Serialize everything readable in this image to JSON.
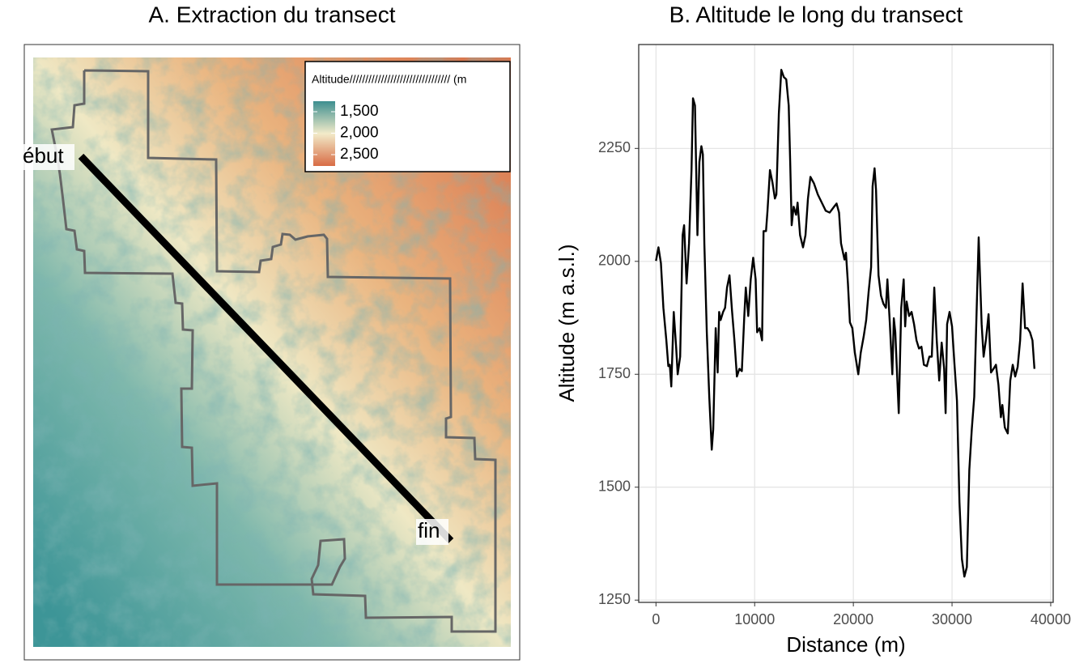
{
  "chart_data": [
    {
      "type": "map",
      "title": "A. Extraction du transect",
      "legend_title": "Altitude//////////////////////////////// (m",
      "legend_lim": [
        1255,
        2765
      ],
      "legend_ticks": [
        {
          "value": 1500,
          "label": "1,500"
        },
        {
          "value": 2000,
          "label": "2,000"
        },
        {
          "value": 2500,
          "label": "2,500"
        }
      ],
      "annotations": [
        "ébut",
        "fin"
      ]
    },
    {
      "type": "line",
      "title": "B. Altitude le long du transect",
      "x_label": "Distance (m)",
      "y_label": "Altitude (m a.s.l.)",
      "color": "#000000",
      "grid": true,
      "xlim": [
        -1750,
        40250
      ],
      "ylim": [
        1245,
        2480
      ],
      "xticks": [
        0,
        10000,
        20000,
        30000,
        40000
      ],
      "yticks": [
        1250,
        1500,
        1750,
        2000,
        2250
      ],
      "x": [
        0,
        250,
        500,
        750,
        1050,
        1250,
        1400,
        1550,
        1800,
        2050,
        2200,
        2450,
        2700,
        2850,
        3100,
        3350,
        3600,
        3750,
        3950,
        4200,
        4400,
        4600,
        4750,
        4900,
        5150,
        5400,
        5650,
        5800,
        6050,
        6250,
        6400,
        6550,
        6800,
        7000,
        7200,
        7450,
        7700,
        7950,
        8200,
        8450,
        8700,
        8950,
        9100,
        9350,
        9600,
        9850,
        10100,
        10250,
        10500,
        10750,
        10900,
        11150,
        11300,
        11550,
        11800,
        12050,
        12200,
        12450,
        12700,
        12950,
        13200,
        13450,
        13600,
        13750,
        13950,
        14200,
        14350,
        14600,
        14900,
        15150,
        15400,
        15650,
        16000,
        16400,
        16800,
        17200,
        17600,
        18050,
        18300,
        18550,
        18750,
        19100,
        19250,
        19450,
        19650,
        19900,
        20150,
        20500,
        20750,
        21050,
        21300,
        21550,
        21800,
        21950,
        22150,
        22300,
        22550,
        22800,
        23050,
        23300,
        23450,
        23700,
        23950,
        24100,
        24250,
        24600,
        24850,
        25100,
        25250,
        25400,
        25650,
        25900,
        26150,
        26400,
        26650,
        26900,
        27150,
        27450,
        27700,
        27950,
        28200,
        28450,
        28700,
        28950,
        29200,
        29350,
        29500,
        29750,
        30000,
        30250,
        30500,
        30750,
        31000,
        31250,
        31500,
        31750,
        32000,
        32250,
        32500,
        32700,
        33000,
        33200,
        33450,
        33700,
        33950,
        34200,
        34450,
        34700,
        34950,
        35100,
        35350,
        35650,
        35900,
        36150,
        36400,
        36650,
        36900,
        37150,
        37400,
        37650,
        37900,
        38150,
        38350
      ],
      "values": [
        2001,
        2031,
        1996,
        1897,
        1825,
        1768,
        1771,
        1723,
        1888,
        1807,
        1750,
        1789,
        2058,
        2080,
        1951,
        2040,
        2202,
        2361,
        2345,
        2058,
        2220,
        2255,
        2237,
        2040,
        1843,
        1700,
        1583,
        1628,
        1852,
        1754,
        1888,
        1870,
        1888,
        1897,
        1942,
        1969,
        1892,
        1825,
        1745,
        1762,
        1757,
        1879,
        1942,
        1879,
        1960,
        2008,
        1960,
        1843,
        1852,
        1825,
        2067,
        2067,
        2112,
        2202,
        2175,
        2139,
        2148,
        2327,
        2424,
        2408,
        2403,
        2345,
        2220,
        2080,
        2121,
        2103,
        2130,
        2058,
        2031,
        2058,
        2139,
        2187,
        2173,
        2148,
        2130,
        2112,
        2108,
        2121,
        2128,
        2108,
        2040,
        2004,
        2019,
        1951,
        1865,
        1852,
        1798,
        1750,
        1798,
        1834,
        1870,
        1933,
        1987,
        2166,
        2206,
        2157,
        1969,
        1924,
        1906,
        1897,
        1960,
        1861,
        1750,
        1874,
        1843,
        1664,
        1897,
        1960,
        1856,
        1911,
        1879,
        1888,
        1861,
        1825,
        1807,
        1811,
        1771,
        1768,
        1789,
        1789,
        1942,
        1825,
        1736,
        1820,
        1762,
        1664,
        1861,
        1888,
        1856,
        1771,
        1691,
        1467,
        1341,
        1302,
        1323,
        1538,
        1628,
        1700,
        1897,
        2053,
        1861,
        1789,
        1829,
        1883,
        1754,
        1762,
        1771,
        1727,
        1655,
        1682,
        1632,
        1619,
        1736,
        1771,
        1745,
        1766,
        1825,
        1951,
        1852,
        1852,
        1843,
        1825,
        1762
      ]
    }
  ]
}
